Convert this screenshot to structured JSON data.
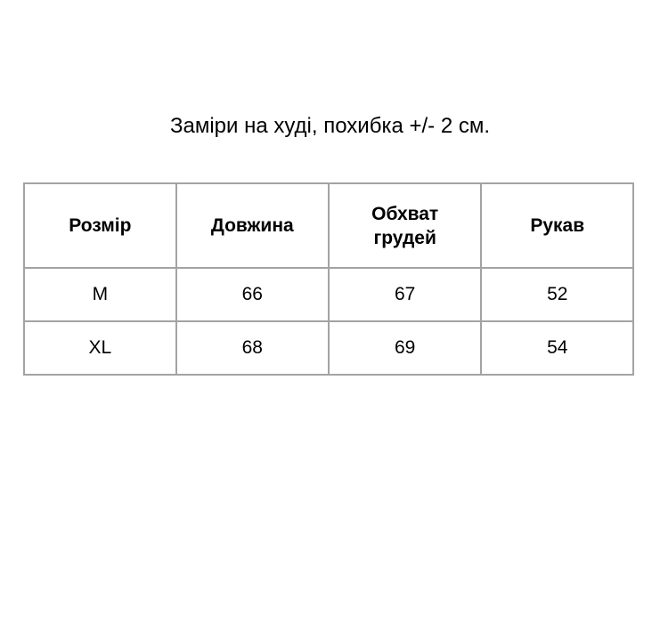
{
  "title": "Заміри на худі, похибка +/- 2 см.",
  "table": {
    "headers": [
      "Розмір",
      "Довжина",
      "Обхват грудей",
      "Рукав"
    ],
    "rows": [
      [
        "M",
        "66",
        "67",
        "52"
      ],
      [
        "XL",
        "68",
        "69",
        "54"
      ]
    ]
  }
}
